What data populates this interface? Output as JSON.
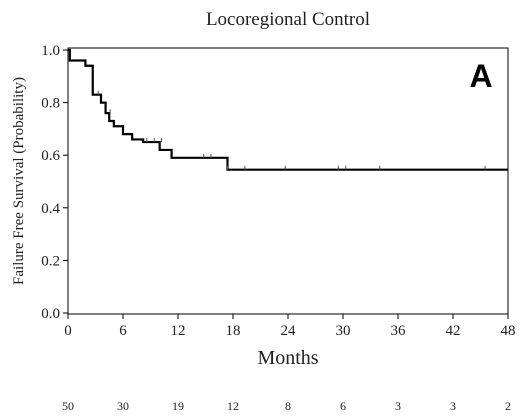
{
  "chart_data": {
    "type": "line",
    "title": "Locoregional Control",
    "panel_label": "A",
    "xlabel": "Months",
    "ylabel": "Failure Free Survival (Probability)",
    "xlim": [
      0,
      48
    ],
    "ylim": [
      0,
      1
    ],
    "x_ticks": [
      0,
      6,
      12,
      18,
      24,
      30,
      36,
      42,
      48
    ],
    "y_ticks": [
      0.0,
      0.2,
      0.4,
      0.6,
      0.8,
      1.0
    ],
    "y_tick_labels": [
      "0.0",
      "0.2",
      "0.4",
      "0.6",
      "0.8",
      "1.0"
    ],
    "grid": false,
    "series": [
      {
        "step_x": [
          0,
          0.2,
          1.9,
          2.7,
          3.6,
          4.1,
          4.5,
          5.0,
          6.0,
          7.0,
          8.2,
          10.0,
          11.3,
          17.4,
          48
        ],
        "step_y": [
          1.0,
          0.96,
          0.94,
          0.83,
          0.8,
          0.76,
          0.73,
          0.71,
          0.68,
          0.66,
          0.65,
          0.62,
          0.59,
          0.545,
          0.545
        ],
        "censor_x": [
          3.3,
          4.6,
          8.6,
          9.4,
          10.2,
          14.8,
          15.6,
          17.4,
          19.3,
          23.7,
          29.5,
          30.3,
          34.0,
          45.5
        ],
        "censor_y": [
          0.83,
          0.76,
          0.65,
          0.65,
          0.65,
          0.59,
          0.59,
          0.545,
          0.545,
          0.545,
          0.545,
          0.545,
          0.545,
          0.545
        ]
      }
    ],
    "at_risk": {
      "x": [
        0,
        6,
        12,
        18,
        24,
        30,
        36,
        42,
        48
      ],
      "values": [
        "50",
        "30",
        "19",
        "12",
        "8",
        "6",
        "3",
        "3",
        "2"
      ]
    }
  }
}
